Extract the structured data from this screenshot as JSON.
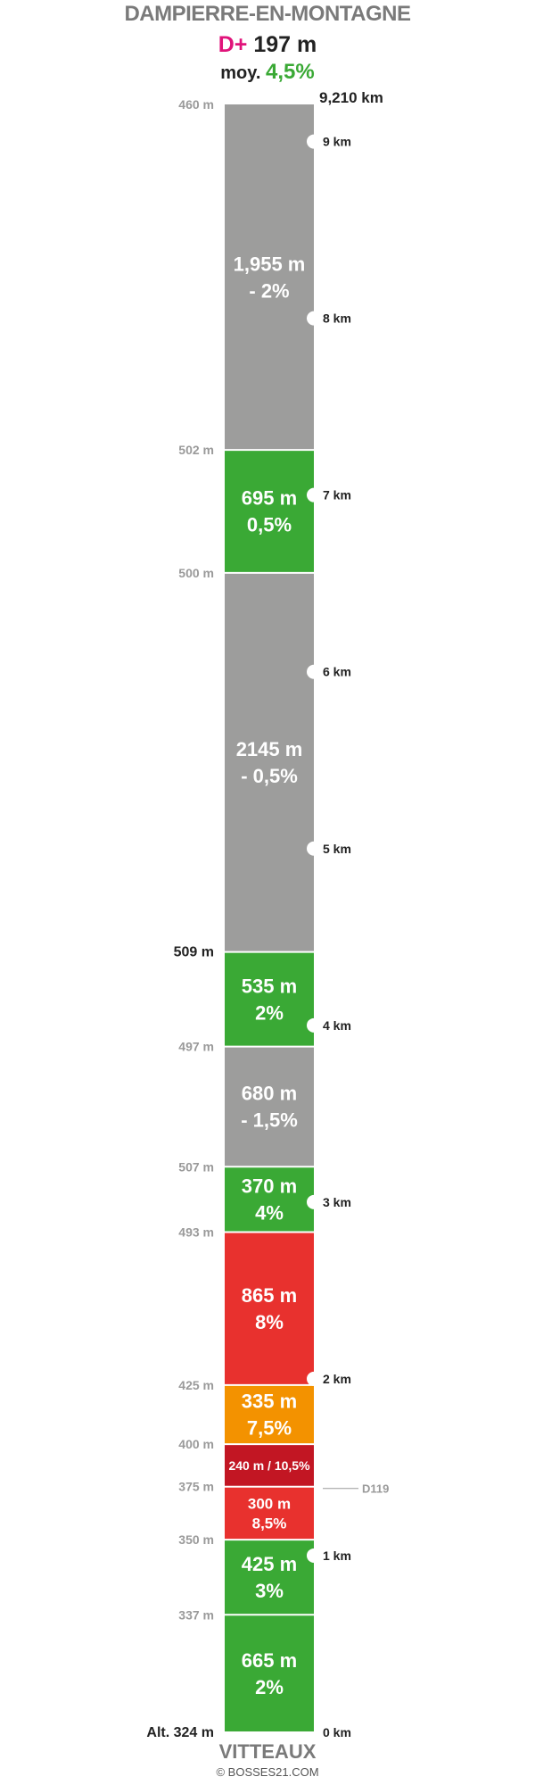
{
  "header": {
    "summit": "DAMPIERRE-EN-MONTAGNE",
    "dplus_label": "D+",
    "dplus_value": "197 m",
    "avg_label": "moy.",
    "avg_value": "4,5%"
  },
  "footer": {
    "start": "VITTEAUX",
    "credit": "© BOSSES21.COM"
  },
  "total_distance": "9,210 km",
  "chart_data": {
    "type": "bar",
    "total_km": 9.21,
    "segments": [
      {
        "length_m": 665,
        "grade": 2,
        "len_label": "665 m",
        "grade_label": "2%",
        "color": "#3aa935",
        "start_alt": "Alt. 324 m"
      },
      {
        "length_m": 425,
        "grade": 3,
        "len_label": "425 m",
        "grade_label": "3%",
        "color": "#3aa935",
        "start_alt": "337 m"
      },
      {
        "length_m": 300,
        "grade": 8.5,
        "len_label": "300 m",
        "grade_label": "8,5%",
        "color": "#e8312e",
        "start_alt": "350 m"
      },
      {
        "length_m": 240,
        "grade": 10.5,
        "len_label": "240 m / 10,5%",
        "grade_label": "",
        "color": "#c21623",
        "start_alt": "375 m"
      },
      {
        "length_m": 335,
        "grade": 7.5,
        "len_label": "335 m",
        "grade_label": "7,5%",
        "color": "#f39200",
        "start_alt": "400 m"
      },
      {
        "length_m": 865,
        "grade": 8,
        "len_label": "865 m",
        "grade_label": "8%",
        "color": "#e8312e",
        "start_alt": "425 m"
      },
      {
        "length_m": 370,
        "grade": 4,
        "len_label": "370 m",
        "grade_label": "4%",
        "color": "#3aa935",
        "start_alt": "493 m"
      },
      {
        "length_m": 680,
        "grade": -1.5,
        "len_label": "680 m",
        "grade_label": "- 1,5%",
        "color": "#9d9d9c",
        "start_alt": "507 m"
      },
      {
        "length_m": 535,
        "grade": 2,
        "len_label": "535 m",
        "grade_label": "2%",
        "color": "#3aa935",
        "start_alt": "497 m"
      },
      {
        "length_m": 2145,
        "grade": -0.5,
        "len_label": "2145 m",
        "grade_label": "- 0,5%",
        "color": "#9d9d9c",
        "start_alt": "509 m",
        "highlight": true
      },
      {
        "length_m": 695,
        "grade": 0.5,
        "len_label": "695 m",
        "grade_label": "0,5%",
        "color": "#3aa935",
        "start_alt": "500 m"
      },
      {
        "length_m": 1955,
        "grade": -2,
        "len_label": "1,955 m",
        "grade_label": "- 2%",
        "color": "#9d9d9c",
        "start_alt": "502 m"
      }
    ],
    "end_altitude": "460 m",
    "km_markers": [
      {
        "km": 0,
        "label": "0 km"
      },
      {
        "km": 1,
        "label": "1 km"
      },
      {
        "km": 2,
        "label": "2 km"
      },
      {
        "km": 3,
        "label": "3 km"
      },
      {
        "km": 4,
        "label": "4 km"
      },
      {
        "km": 5,
        "label": "5 km"
      },
      {
        "km": 6,
        "label": "6 km"
      },
      {
        "km": 7,
        "label": "7 km"
      },
      {
        "km": 8,
        "label": "8 km"
      },
      {
        "km": 9,
        "label": "9 km"
      }
    ],
    "road_marker": {
      "at_m": 1380,
      "label": "D119"
    }
  }
}
